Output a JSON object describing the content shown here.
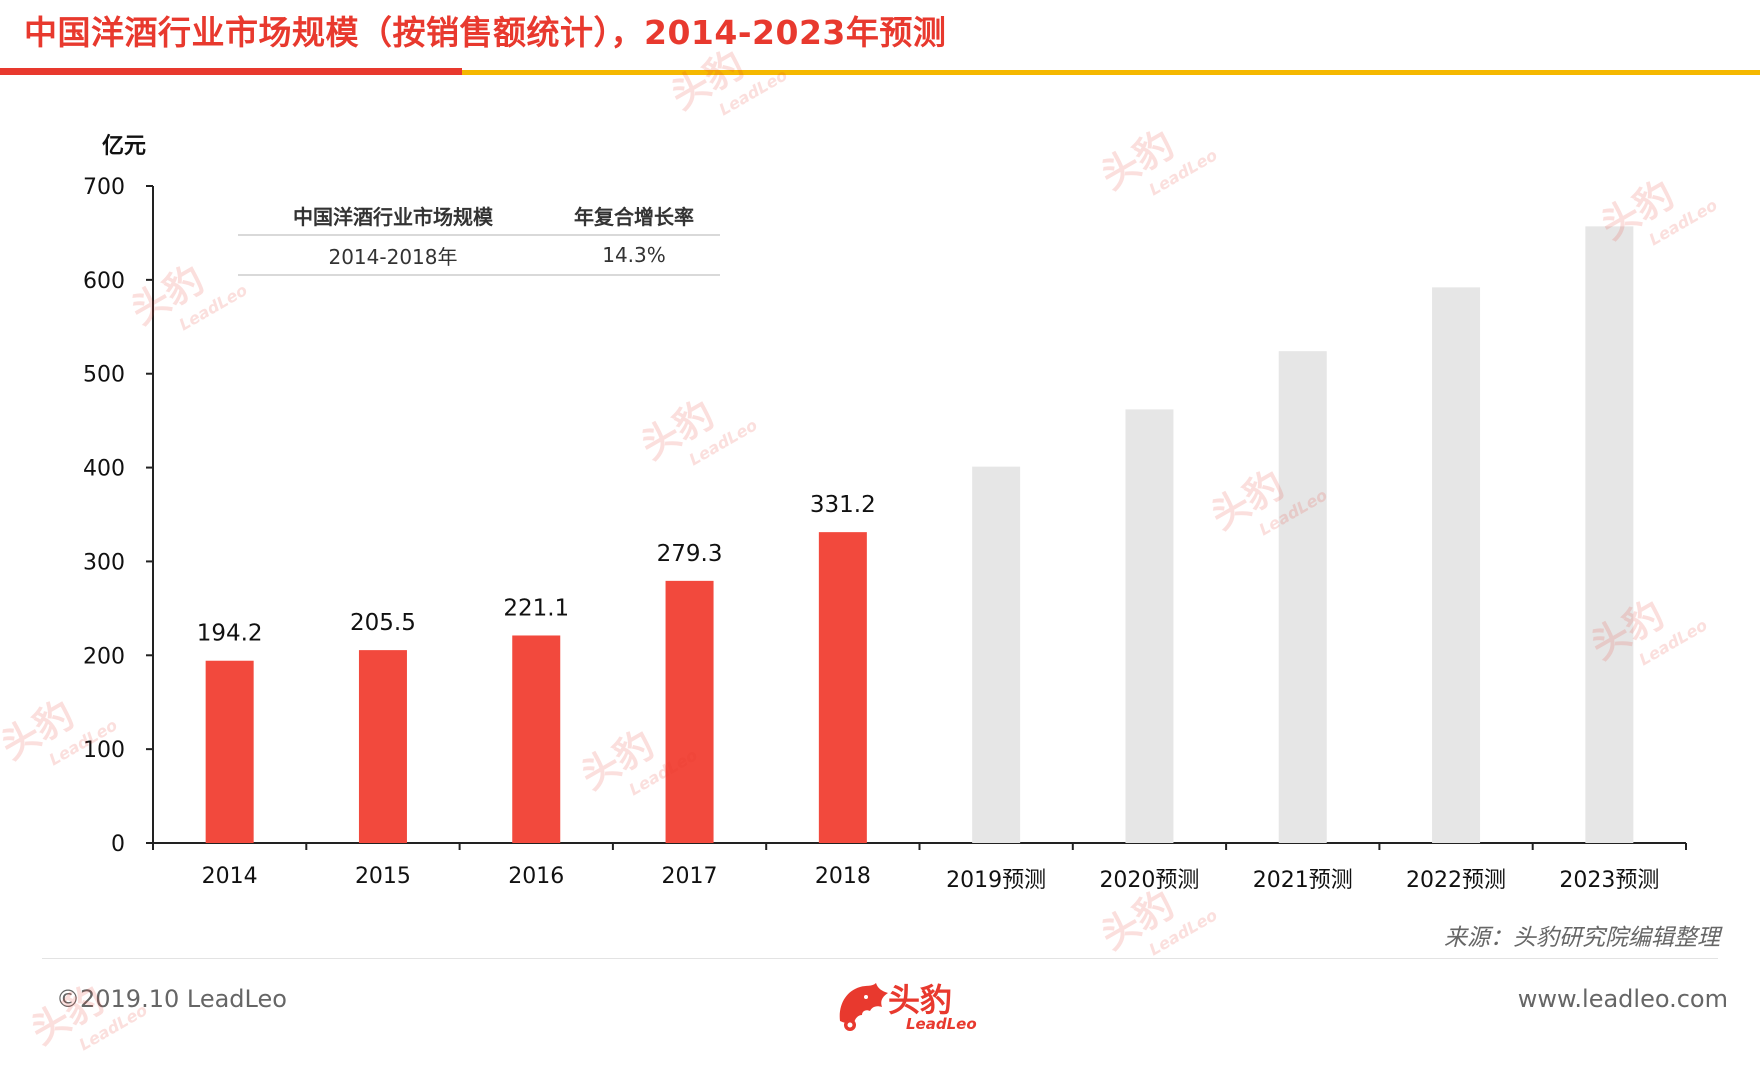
{
  "header": {
    "title": "中国洋酒行业市场规模（按销售额统计），2014-2023年预测"
  },
  "colors": {
    "accent": "#e8392e",
    "secondary_bar": "#f5b800",
    "actual": "#f2493d",
    "forecast": "#e6e6e6"
  },
  "chart_data": {
    "type": "bar",
    "unit_label": "亿元",
    "ylim": [
      0,
      700
    ],
    "yticks": [
      "0",
      "100",
      "200",
      "300",
      "400",
      "500",
      "600",
      "700"
    ],
    "categories": [
      "2014",
      "2015",
      "2016",
      "2017",
      "2018",
      "2019预测",
      "2020预测",
      "2021预测",
      "2022预测",
      "2023预测"
    ],
    "values": [
      194.2,
      205.5,
      221.1,
      279.3,
      331.2,
      401,
      462,
      524,
      592,
      657
    ],
    "forecast": [
      false,
      false,
      false,
      false,
      false,
      true,
      true,
      true,
      true,
      true
    ],
    "data_labels": [
      "194.2",
      "205.5",
      "221.1",
      "279.3",
      "331.2",
      "",
      "",
      "",
      "",
      ""
    ],
    "grid": false,
    "legend": "none"
  },
  "inset_table": {
    "headers": [
      "中国洋酒行业市场规模",
      "年复合增长率"
    ],
    "rows": [
      [
        "2014-2018年",
        "14.3%"
      ]
    ]
  },
  "source": "来源：头豹研究院编辑整理",
  "footer": {
    "copyright": "©2019.10 LeadLeo",
    "website": "www.leadleo.com",
    "logo_text": "头豹",
    "logo_sub": "LeadLeo"
  },
  "watermark": {
    "text": "头豹",
    "sub": "LeadLeo"
  }
}
